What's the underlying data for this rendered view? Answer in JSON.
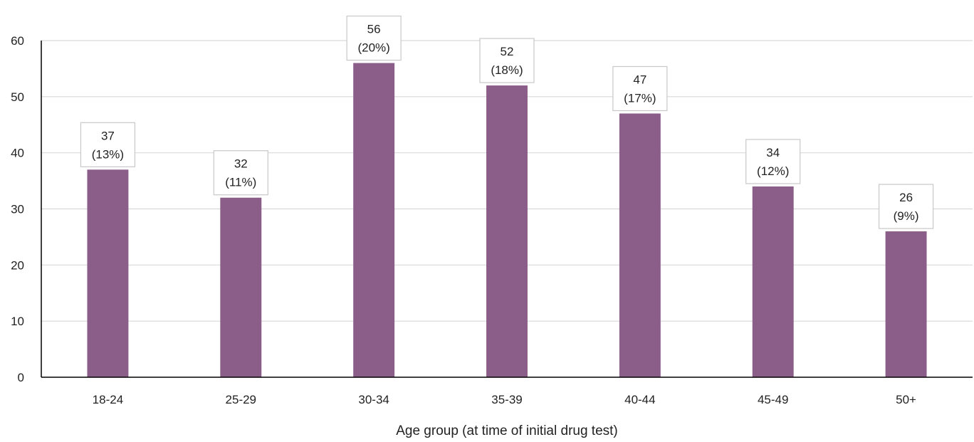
{
  "chart_data": {
    "type": "bar",
    "xlabel": "Age group (at time of initial drug test)",
    "ylabel": "",
    "categories": [
      "18-24",
      "25-29",
      "30-34",
      "35-39",
      "40-44",
      "45-49",
      "50+"
    ],
    "values": [
      37,
      32,
      56,
      52,
      47,
      34,
      26
    ],
    "data_labels": [
      {
        "value": "37",
        "percent": "(13%)"
      },
      {
        "value": "32",
        "percent": "(11%)"
      },
      {
        "value": "56",
        "percent": "(20%)"
      },
      {
        "value": "52",
        "percent": "(18%)"
      },
      {
        "value": "47",
        "percent": "(17%)"
      },
      {
        "value": "34",
        "percent": "(12%)"
      },
      {
        "value": "26",
        "percent": "(9%)"
      }
    ],
    "y_ticks": [
      0,
      10,
      20,
      30,
      40,
      50,
      60
    ],
    "ylim": [
      0,
      60
    ],
    "grid": true,
    "legend": "none",
    "bar_color": "#8B5E89"
  }
}
